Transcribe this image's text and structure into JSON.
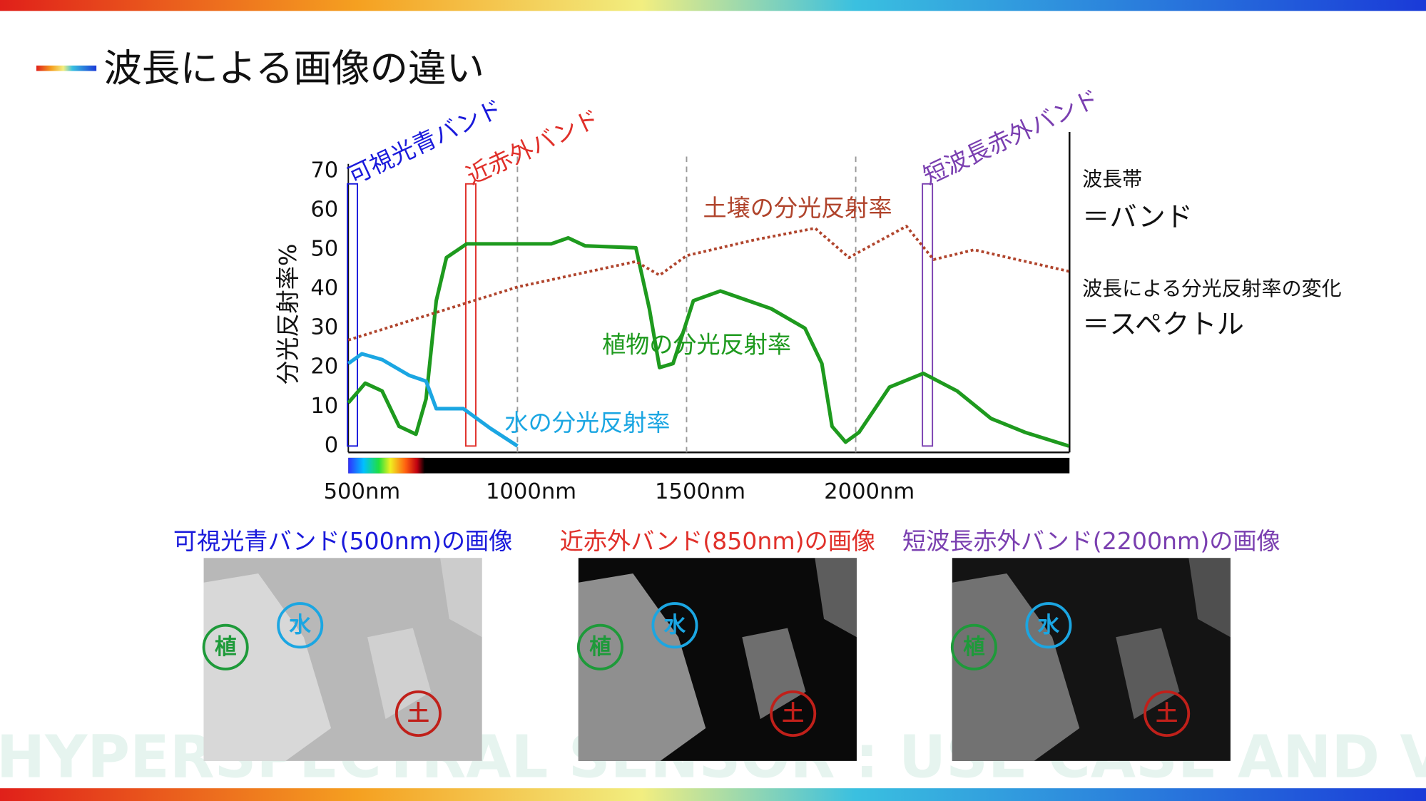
{
  "header": {
    "title": "波長による画像の違い"
  },
  "chart_data": {
    "type": "line",
    "ylabel": "分光反射率%",
    "xlim": [
      500,
      2632
    ],
    "ylim": [
      0,
      80
    ],
    "xticks": [
      {
        "value": 500,
        "label": "500nm"
      },
      {
        "value": 1000,
        "label": "1000nm"
      },
      {
        "value": 1500,
        "label": "1500nm"
      },
      {
        "value": 2000,
        "label": "2000nm"
      }
    ],
    "yticks": [
      0,
      10,
      20,
      30,
      40,
      50,
      60,
      70
    ],
    "grid": true,
    "series": [
      {
        "name": "植物の分光反射率",
        "color": "#1e9a1e",
        "x": [
          500,
          550,
          600,
          650,
          700,
          730,
          760,
          790,
          850,
          1000,
          1100,
          1150,
          1200,
          1350,
          1390,
          1420,
          1460,
          1520,
          1600,
          1750,
          1850,
          1900,
          1930,
          1970,
          2010,
          2100,
          2200,
          2300,
          2400,
          2500,
          2630
        ],
        "values": [
          11,
          16,
          14,
          5,
          3,
          12,
          37,
          48,
          51.5,
          51.5,
          51.5,
          53,
          51,
          50.5,
          35,
          20,
          21,
          37,
          39.5,
          35,
          30,
          21,
          5,
          1,
          3.5,
          15,
          18.5,
          14,
          7,
          3.5,
          0
        ]
      },
      {
        "name": "水の分光反射率",
        "color": "#1ba6e2",
        "x": [
          500,
          540,
          600,
          680,
          730,
          760,
          840,
          920,
          1000
        ],
        "values": [
          21,
          23.5,
          22,
          18,
          16.5,
          9.5,
          9.5,
          4.5,
          0
        ]
      },
      {
        "name": "土壌の分光反射率",
        "color": "#b0442c",
        "dash": true,
        "x": [
          500,
          1000,
          1350,
          1420,
          1500,
          1700,
          1880,
          1980,
          2150,
          2230,
          2350,
          2630
        ],
        "values": [
          27,
          40.5,
          47,
          43.5,
          48.5,
          52.5,
          55.5,
          48,
          56,
          47.5,
          50,
          44.5
        ]
      }
    ],
    "bands": [
      {
        "label": "可視光青バンド",
        "x": 500,
        "color": "#1a1adb"
      },
      {
        "label": "近赤外バンド",
        "x": 850,
        "color": "#e0302a"
      },
      {
        "label": "短波長赤外バンド",
        "x": 2200,
        "color": "#7a3fb0"
      }
    ]
  },
  "notes": [
    "波長帯",
    "＝バンド",
    "波長による分光反射率の変化",
    "＝スペクトル"
  ],
  "images": [
    {
      "caption": "可視光青バンド(500nm)の画像",
      "color": "#1a1adb",
      "markers": [
        "植",
        "水",
        "土"
      ]
    },
    {
      "caption": "近赤外バンド(850nm)の画像",
      "color": "#e0302a",
      "markers": [
        "植",
        "水",
        "土"
      ]
    },
    {
      "caption": "短波長赤外バンド(2200nm)の画像",
      "color": "#7a3fb0",
      "markers": [
        "植",
        "水",
        "土"
      ]
    }
  ],
  "watermark": "HYPERSPECTRAL SENSOR : USE CASE AND VISION"
}
